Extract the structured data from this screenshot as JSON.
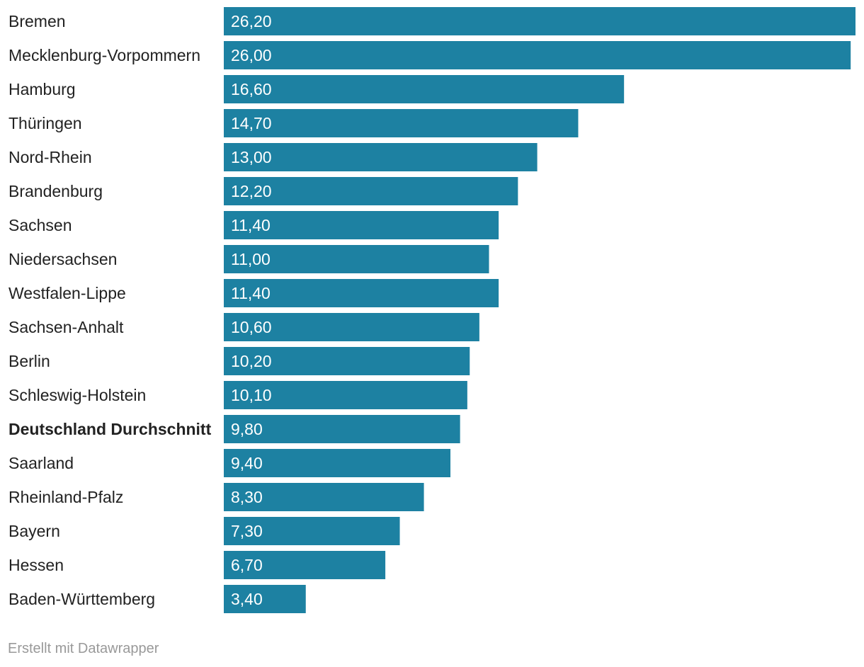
{
  "chart_data": {
    "type": "bar",
    "orientation": "horizontal",
    "title": "",
    "xlabel": "",
    "ylabel": "",
    "xlim": [
      0,
      26.2
    ],
    "grid": false,
    "bar_color": "#1d81a2",
    "highlight_category": "Deutschland Durchschnitt",
    "categories": [
      "Bremen",
      "Mecklenburg-Vorpommern",
      "Hamburg",
      "Thüringen",
      "Nord-Rhein",
      "Brandenburg",
      "Sachsen",
      "Niedersachsen",
      "Westfalen-Lippe",
      "Sachsen-Anhalt",
      "Berlin",
      "Schleswig-Holstein",
      "Deutschland Durchschnitt",
      "Saarland",
      "Rheinland-Pfalz",
      "Bayern",
      "Hessen",
      "Baden-Württemberg"
    ],
    "values": [
      26.2,
      26.0,
      16.6,
      14.7,
      13.0,
      12.2,
      11.4,
      11.0,
      11.4,
      10.6,
      10.2,
      10.1,
      9.8,
      9.4,
      8.3,
      7.3,
      6.7,
      3.4
    ],
    "value_labels": [
      "26,20",
      "26,00",
      "16,60",
      "14,70",
      "13,00",
      "12,20",
      "11,40",
      "11,00",
      "11,40",
      "10,60",
      "10,20",
      "10,10",
      "9,80",
      "9,40",
      "8,30",
      "7,30",
      "6,70",
      "3,40"
    ]
  },
  "footer": {
    "credit": "Erstellt mit Datawrapper"
  }
}
